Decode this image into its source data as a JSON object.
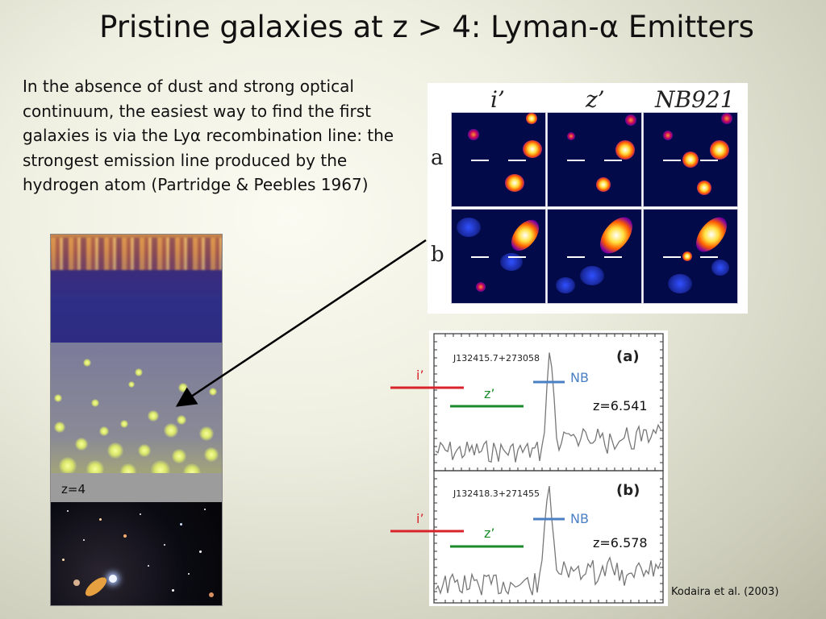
{
  "slide": {
    "title": "Pristine galaxies at z > 4: Lyman-α Emitters",
    "body": "In the absence of dust and strong optical continuum, the easiest way to find the first galaxies is via the Lyα recombination line: the strongest emission line produced  by the hydrogen atom (Partridge & Peebles 1967)",
    "z_label": "z=4",
    "credit": "Kodaira et al. (2003)"
  },
  "images": {
    "headers": [
      "i’",
      "z’",
      "NB921"
    ],
    "rows": [
      "a",
      "b"
    ]
  },
  "spectra": {
    "panels": [
      {
        "id": "J132415.7+273058",
        "tag": "(a)",
        "redshift": "z=6.541"
      },
      {
        "id": "J132418.3+271455",
        "tag": "(b)",
        "redshift": "z=6.578"
      }
    ],
    "filters": {
      "i": "i’",
      "z": "z’",
      "nb": "NB"
    },
    "colors": {
      "i": "#d8232a",
      "z": "#1a8a2a",
      "nb": "#4a7fc4"
    }
  }
}
